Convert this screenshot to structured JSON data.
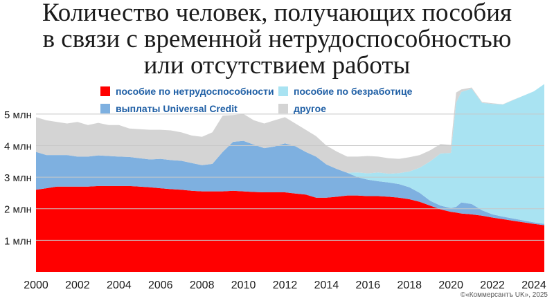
{
  "title": {
    "line1": "Количество человек, получающих пособия",
    "line2": "в связи с временной нетрудоспособностью",
    "line3": "или отсутствием работы"
  },
  "credit": "©«Коммерсантъ UK», 2025",
  "colors": {
    "incapacity": "#ff0000",
    "universal_credit": "#7eb0e0",
    "unemployment": "#a9e3f2",
    "other": "#d4d4d4",
    "legend_text": "#1f5fa5",
    "grid": "#c8c8c8"
  },
  "chart_data": {
    "type": "area",
    "stacked": true,
    "title": "Количество человек, получающих пособия в связи с временной нетрудоспособностью или отсутствием работы",
    "xlabel": "",
    "ylabel": "",
    "xlim": [
      2000,
      2024.5
    ],
    "ylim": [
      0,
      5.5
    ],
    "grid": true,
    "legend_position": "top",
    "x_ticks": [
      2000,
      2002,
      2004,
      2006,
      2008,
      2010,
      2012,
      2014,
      2016,
      2018,
      2020,
      2022,
      2024
    ],
    "x_tick_labels": [
      "2000",
      "2002",
      "2004",
      "2006",
      "2008",
      "2010",
      "2012",
      "2014",
      "2016",
      "2018",
      "2020",
      "2022",
      "2024"
    ],
    "y_ticks": [
      1,
      2,
      3,
      4,
      5
    ],
    "y_tick_labels": [
      "1 млн",
      "2 млн",
      "3 млн",
      "4 млн",
      "5 млн"
    ],
    "legend": [
      {
        "key": "incapacity",
        "label": "пособие по нетрудоспособности"
      },
      {
        "key": "unemployment",
        "label": "пособие по безработице"
      },
      {
        "key": "universal_credit",
        "label": "выплаты Universal Credit"
      },
      {
        "key": "other",
        "label": "другое"
      }
    ],
    "x": [
      2000,
      2000.5,
      2001,
      2001.5,
      2002,
      2002.5,
      2003,
      2003.5,
      2004,
      2004.5,
      2005,
      2005.5,
      2006,
      2006.5,
      2007,
      2007.5,
      2008,
      2008.5,
      2009,
      2009.5,
      2010,
      2010.5,
      2011,
      2011.5,
      2012,
      2012.5,
      2013,
      2013.5,
      2014,
      2014.5,
      2015,
      2015.5,
      2016,
      2016.5,
      2017,
      2017.5,
      2018,
      2018.5,
      2019,
      2019.5,
      2020,
      2020.25,
      2020.5,
      2021,
      2021.5,
      2022,
      2022.5,
      2023,
      2023.5,
      2024,
      2024.5
    ],
    "series": [
      {
        "key": "incapacity",
        "name": "пособие по нетрудоспособности",
        "values": [
          2.6,
          2.65,
          2.7,
          2.7,
          2.7,
          2.7,
          2.72,
          2.72,
          2.72,
          2.72,
          2.7,
          2.68,
          2.65,
          2.62,
          2.6,
          2.57,
          2.55,
          2.55,
          2.55,
          2.57,
          2.55,
          2.53,
          2.52,
          2.52,
          2.52,
          2.48,
          2.45,
          2.35,
          2.35,
          2.38,
          2.42,
          2.42,
          2.4,
          2.4,
          2.38,
          2.35,
          2.3,
          2.22,
          2.1,
          1.98,
          1.9,
          1.88,
          1.85,
          1.82,
          1.78,
          1.72,
          1.67,
          1.62,
          1.57,
          1.52,
          1.48
        ]
      },
      {
        "key": "universal_credit",
        "name": "выплаты Universal Credit",
        "values": [
          1.2,
          1.05,
          1.0,
          1.0,
          0.95,
          0.95,
          0.97,
          0.95,
          0.93,
          0.92,
          0.9,
          0.88,
          0.93,
          0.92,
          0.92,
          0.88,
          0.83,
          0.87,
          1.25,
          1.55,
          1.6,
          1.5,
          1.4,
          1.45,
          1.55,
          1.5,
          1.35,
          1.3,
          1.05,
          0.88,
          0.72,
          0.58,
          0.52,
          0.47,
          0.45,
          0.43,
          0.38,
          0.28,
          0.15,
          0.12,
          0.12,
          0.18,
          0.35,
          0.33,
          0.17,
          0.1,
          0.08,
          0.07,
          0.06,
          0.05,
          0.04
        ]
      },
      {
        "key": "unemployment",
        "name": "пособие по безработице",
        "values": [
          0,
          0,
          0,
          0,
          0,
          0,
          0,
          0,
          0,
          0,
          0,
          0,
          0,
          0,
          0,
          0,
          0,
          0,
          0,
          0,
          0,
          0,
          0,
          0,
          0,
          0,
          0,
          0,
          0,
          0,
          0,
          0.15,
          0.2,
          0.28,
          0.28,
          0.35,
          0.5,
          0.8,
          1.25,
          1.65,
          1.75,
          3.3,
          3.5,
          3.65,
          3.4,
          3.5,
          3.55,
          3.75,
          3.95,
          4.15,
          4.43
        ]
      },
      {
        "key": "other",
        "name": "другое",
        "values": [
          1.1,
          1.1,
          1.05,
          1.0,
          1.1,
          1.0,
          1.03,
          0.98,
          1.0,
          0.9,
          0.92,
          0.94,
          0.92,
          0.94,
          0.9,
          0.87,
          0.9,
          1.0,
          1.15,
          0.85,
          0.85,
          0.77,
          0.78,
          0.83,
          0.83,
          0.72,
          0.7,
          0.65,
          0.6,
          0.55,
          0.51,
          0.5,
          0.55,
          0.5,
          0.49,
          0.45,
          0.45,
          0.4,
          0.35,
          0.3,
          0.25,
          0.32,
          0.08,
          0.04,
          0.03,
          0.02,
          0.01,
          0.01,
          0.0,
          0.0,
          0.0
        ]
      }
    ]
  }
}
